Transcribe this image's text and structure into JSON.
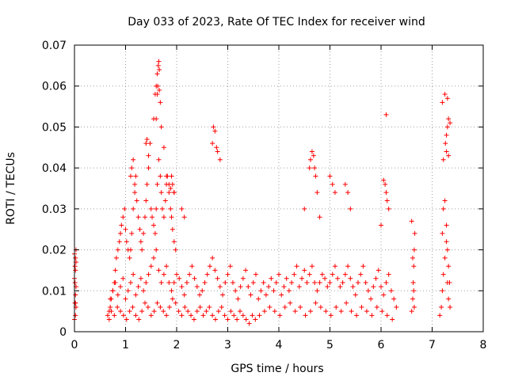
{
  "chart_data": {
    "type": "scatter",
    "title": "Day 033 of 2023, Rate Of TEC Index for receiver wind",
    "xlabel": "GPS time / hours",
    "ylabel": "ROTI / TECUs",
    "xlim": [
      0,
      8
    ],
    "ylim": [
      0,
      0.07
    ],
    "xticks": [
      0,
      1,
      2,
      3,
      4,
      5,
      6,
      7,
      8
    ],
    "xtick_labels": [
      "0",
      "1",
      "2",
      "3",
      "4",
      "5",
      "6",
      "7",
      "8"
    ],
    "yticks": [
      0,
      0.01,
      0.02,
      0.03,
      0.04,
      0.05,
      0.06,
      0.07
    ],
    "ytick_labels": [
      "0",
      "0.01",
      "0.02",
      "0.03",
      "0.04",
      "0.05",
      "0.06",
      "0.07"
    ],
    "grid": true,
    "marker": "plus",
    "color": "#ff0000",
    "series": [
      {
        "x": [
          0.0,
          0.02,
          0.03,
          0.01,
          0.02,
          0.03,
          0.0,
          0.02,
          0.01,
          0.03,
          0.02,
          0.0,
          0.03,
          0.01,
          0.02,
          0.65,
          0.68,
          0.7,
          0.72,
          0.75,
          0.78,
          0.8,
          0.82,
          0.85,
          0.88,
          0.9,
          0.92,
          0.95,
          0.98,
          1.0,
          1.02,
          1.05,
          1.08,
          1.1,
          1.12,
          1.15,
          1.18,
          1.2,
          1.22,
          1.25,
          1.28,
          1.3,
          1.32,
          1.35,
          1.38,
          1.4,
          1.42,
          1.45,
          1.48,
          1.5,
          1.52,
          1.55,
          1.58,
          1.6,
          1.62,
          1.65,
          1.68,
          1.7,
          1.72,
          1.75,
          1.78,
          1.8,
          1.82,
          1.85,
          1.88,
          1.9,
          1.92,
          1.95,
          1.98,
          0.7,
          0.75,
          0.8,
          0.85,
          0.9,
          0.95,
          1.0,
          1.05,
          1.1,
          1.15,
          1.2,
          1.25,
          1.3,
          1.35,
          1.4,
          1.45,
          1.5,
          1.55,
          1.6,
          1.65,
          1.7,
          1.75,
          1.8,
          1.85,
          1.9,
          1.95,
          2.0,
          2.05,
          2.1,
          2.15,
          2.2,
          2.25,
          2.3,
          2.35,
          2.4,
          2.45,
          2.5,
          2.55,
          2.6,
          2.65,
          2.7,
          2.75,
          2.8,
          2.85,
          2.9,
          2.95,
          3.0,
          3.05,
          3.1,
          3.15,
          3.2,
          3.25,
          3.3,
          3.35,
          3.4,
          3.45,
          3.5,
          3.55,
          0.68,
          0.72,
          0.78,
          0.84,
          0.9,
          0.96,
          1.02,
          1.08,
          1.14,
          1.2,
          1.26,
          1.32,
          1.38,
          1.44,
          1.5,
          1.56,
          1.62,
          1.68,
          1.74,
          1.8,
          1.86,
          1.92,
          1.98,
          2.04,
          2.1,
          2.16,
          2.22,
          2.28,
          2.34,
          2.4,
          2.46,
          2.52,
          2.58,
          2.64,
          2.7,
          2.76,
          2.82,
          2.88,
          2.94,
          3.0,
          3.06,
          3.12,
          3.18,
          3.24,
          3.3,
          3.36,
          3.42,
          3.48,
          3.54,
          1.1,
          1.12,
          1.15,
          1.18,
          1.4,
          1.42,
          1.45,
          1.6,
          1.62,
          1.63,
          1.65,
          1.66,
          1.7,
          1.75,
          1.8,
          1.85,
          1.88,
          1.9,
          1.95,
          2.1,
          2.15,
          2.7,
          2.72,
          2.75,
          2.78,
          2.8,
          2.85,
          1.55,
          1.58,
          1.6,
          1.62,
          1.64,
          1.66,
          1.68,
          1.9,
          1.92,
          1.95,
          3.6,
          3.65,
          3.7,
          3.75,
          3.8,
          3.85,
          3.9,
          3.95,
          4.0,
          4.05,
          4.1,
          4.15,
          4.2,
          4.25,
          4.3,
          4.35,
          4.4,
          4.45,
          4.5,
          4.55,
          4.6,
          4.65,
          4.7,
          4.75,
          4.8,
          4.85,
          4.9,
          4.95,
          5.0,
          5.05,
          5.1,
          5.15,
          5.2,
          5.25,
          5.3,
          5.35,
          5.4,
          5.45,
          5.5,
          5.55,
          5.6,
          5.65,
          5.7,
          5.75,
          5.8,
          5.85,
          5.9,
          5.95,
          6.0,
          6.05,
          6.1,
          6.15,
          6.2,
          6.25,
          6.3,
          3.62,
          3.72,
          3.82,
          3.92,
          4.02,
          4.12,
          4.22,
          4.32,
          4.42,
          4.52,
          4.62,
          4.72,
          4.82,
          4.92,
          5.02,
          5.12,
          5.22,
          5.32,
          5.42,
          5.52,
          5.62,
          5.72,
          5.82,
          5.92,
          6.02,
          6.12,
          6.22,
          4.5,
          4.6,
          4.62,
          4.65,
          4.68,
          4.7,
          4.72,
          4.75,
          4.8,
          5.0,
          5.05,
          5.1,
          5.3,
          5.35,
          5.4,
          6.05,
          6.08,
          6.1,
          6.12,
          6.15,
          6.1,
          6.0,
          6.6,
          6.62,
          6.63,
          6.64,
          6.65,
          6.66,
          6.6,
          6.62,
          6.64,
          6.65,
          7.15,
          7.18,
          7.2,
          7.22,
          7.25,
          7.28,
          7.3,
          7.32,
          7.35,
          7.2,
          7.22,
          7.25,
          7.28,
          7.3,
          7.32,
          7.34,
          7.3,
          7.32,
          7.26,
          7.28,
          7.2,
          7.25,
          7.3,
          7.35,
          7.22,
          7.28,
          7.32
        ],
        "y": [
          0.003,
          0.004,
          0.006,
          0.007,
          0.009,
          0.011,
          0.013,
          0.015,
          0.016,
          0.017,
          0.018,
          0.019,
          0.02,
          0.012,
          0.007,
          0.004,
          0.005,
          0.006,
          0.008,
          0.01,
          0.012,
          0.015,
          0.018,
          0.02,
          0.022,
          0.024,
          0.026,
          0.028,
          0.03,
          0.025,
          0.022,
          0.02,
          0.018,
          0.02,
          0.024,
          0.03,
          0.034,
          0.038,
          0.032,
          0.028,
          0.025,
          0.022,
          0.02,
          0.024,
          0.028,
          0.032,
          0.036,
          0.04,
          0.046,
          0.03,
          0.028,
          0.026,
          0.024,
          0.03,
          0.036,
          0.042,
          0.038,
          0.034,
          0.03,
          0.028,
          0.032,
          0.036,
          0.038,
          0.034,
          0.03,
          0.028,
          0.025,
          0.022,
          0.02,
          0.008,
          0.01,
          0.012,
          0.009,
          0.011,
          0.013,
          0.008,
          0.01,
          0.012,
          0.014,
          0.009,
          0.011,
          0.013,
          0.01,
          0.012,
          0.014,
          0.016,
          0.018,
          0.02,
          0.015,
          0.012,
          0.014,
          0.016,
          0.012,
          0.01,
          0.012,
          0.014,
          0.013,
          0.011,
          0.009,
          0.012,
          0.014,
          0.016,
          0.013,
          0.011,
          0.009,
          0.01,
          0.012,
          0.014,
          0.016,
          0.018,
          0.015,
          0.013,
          0.011,
          0.009,
          0.012,
          0.014,
          0.016,
          0.012,
          0.01,
          0.008,
          0.011,
          0.013,
          0.015,
          0.011,
          0.009,
          0.012,
          0.014,
          0.003,
          0.005,
          0.004,
          0.006,
          0.005,
          0.004,
          0.003,
          0.005,
          0.006,
          0.004,
          0.003,
          0.005,
          0.007,
          0.006,
          0.004,
          0.005,
          0.007,
          0.006,
          0.005,
          0.004,
          0.006,
          0.008,
          0.007,
          0.005,
          0.004,
          0.006,
          0.005,
          0.004,
          0.003,
          0.005,
          0.006,
          0.004,
          0.005,
          0.006,
          0.004,
          0.003,
          0.005,
          0.006,
          0.004,
          0.003,
          0.005,
          0.004,
          0.003,
          0.005,
          0.004,
          0.003,
          0.002,
          0.004,
          0.003,
          0.038,
          0.04,
          0.042,
          0.036,
          0.046,
          0.047,
          0.043,
          0.052,
          0.058,
          0.06,
          0.066,
          0.064,
          0.05,
          0.045,
          0.038,
          0.036,
          0.035,
          0.038,
          0.034,
          0.03,
          0.028,
          0.046,
          0.05,
          0.049,
          0.045,
          0.044,
          0.042,
          0.052,
          0.058,
          0.06,
          0.063,
          0.065,
          0.059,
          0.056,
          0.038,
          0.036,
          0.034,
          0.008,
          0.01,
          0.012,
          0.009,
          0.011,
          0.013,
          0.01,
          0.012,
          0.014,
          0.009,
          0.011,
          0.013,
          0.01,
          0.012,
          0.014,
          0.016,
          0.011,
          0.013,
          0.015,
          0.012,
          0.014,
          0.016,
          0.012,
          0.01,
          0.012,
          0.014,
          0.013,
          0.011,
          0.012,
          0.014,
          0.016,
          0.013,
          0.011,
          0.012,
          0.014,
          0.016,
          0.013,
          0.011,
          0.009,
          0.012,
          0.014,
          0.016,
          0.012,
          0.01,
          0.008,
          0.011,
          0.013,
          0.015,
          0.011,
          0.009,
          0.012,
          0.014,
          0.01,
          0.008,
          0.006,
          0.004,
          0.005,
          0.006,
          0.005,
          0.004,
          0.006,
          0.007,
          0.005,
          0.006,
          0.004,
          0.005,
          0.007,
          0.006,
          0.005,
          0.004,
          0.006,
          0.005,
          0.007,
          0.005,
          0.004,
          0.006,
          0.005,
          0.004,
          0.006,
          0.005,
          0.004,
          0.003,
          0.03,
          0.04,
          0.042,
          0.044,
          0.043,
          0.04,
          0.038,
          0.034,
          0.028,
          0.038,
          0.036,
          0.034,
          0.036,
          0.034,
          0.03,
          0.037,
          0.036,
          0.034,
          0.032,
          0.03,
          0.053,
          0.026,
          0.005,
          0.008,
          0.012,
          0.016,
          0.02,
          0.024,
          0.027,
          0.018,
          0.01,
          0.006,
          0.004,
          0.006,
          0.01,
          0.014,
          0.018,
          0.022,
          0.012,
          0.008,
          0.006,
          0.024,
          0.03,
          0.032,
          0.026,
          0.02,
          0.016,
          0.012,
          0.05,
          0.052,
          0.046,
          0.048,
          0.056,
          0.058,
          0.057,
          0.051,
          0.042,
          0.044,
          0.043
        ]
      }
    ]
  }
}
